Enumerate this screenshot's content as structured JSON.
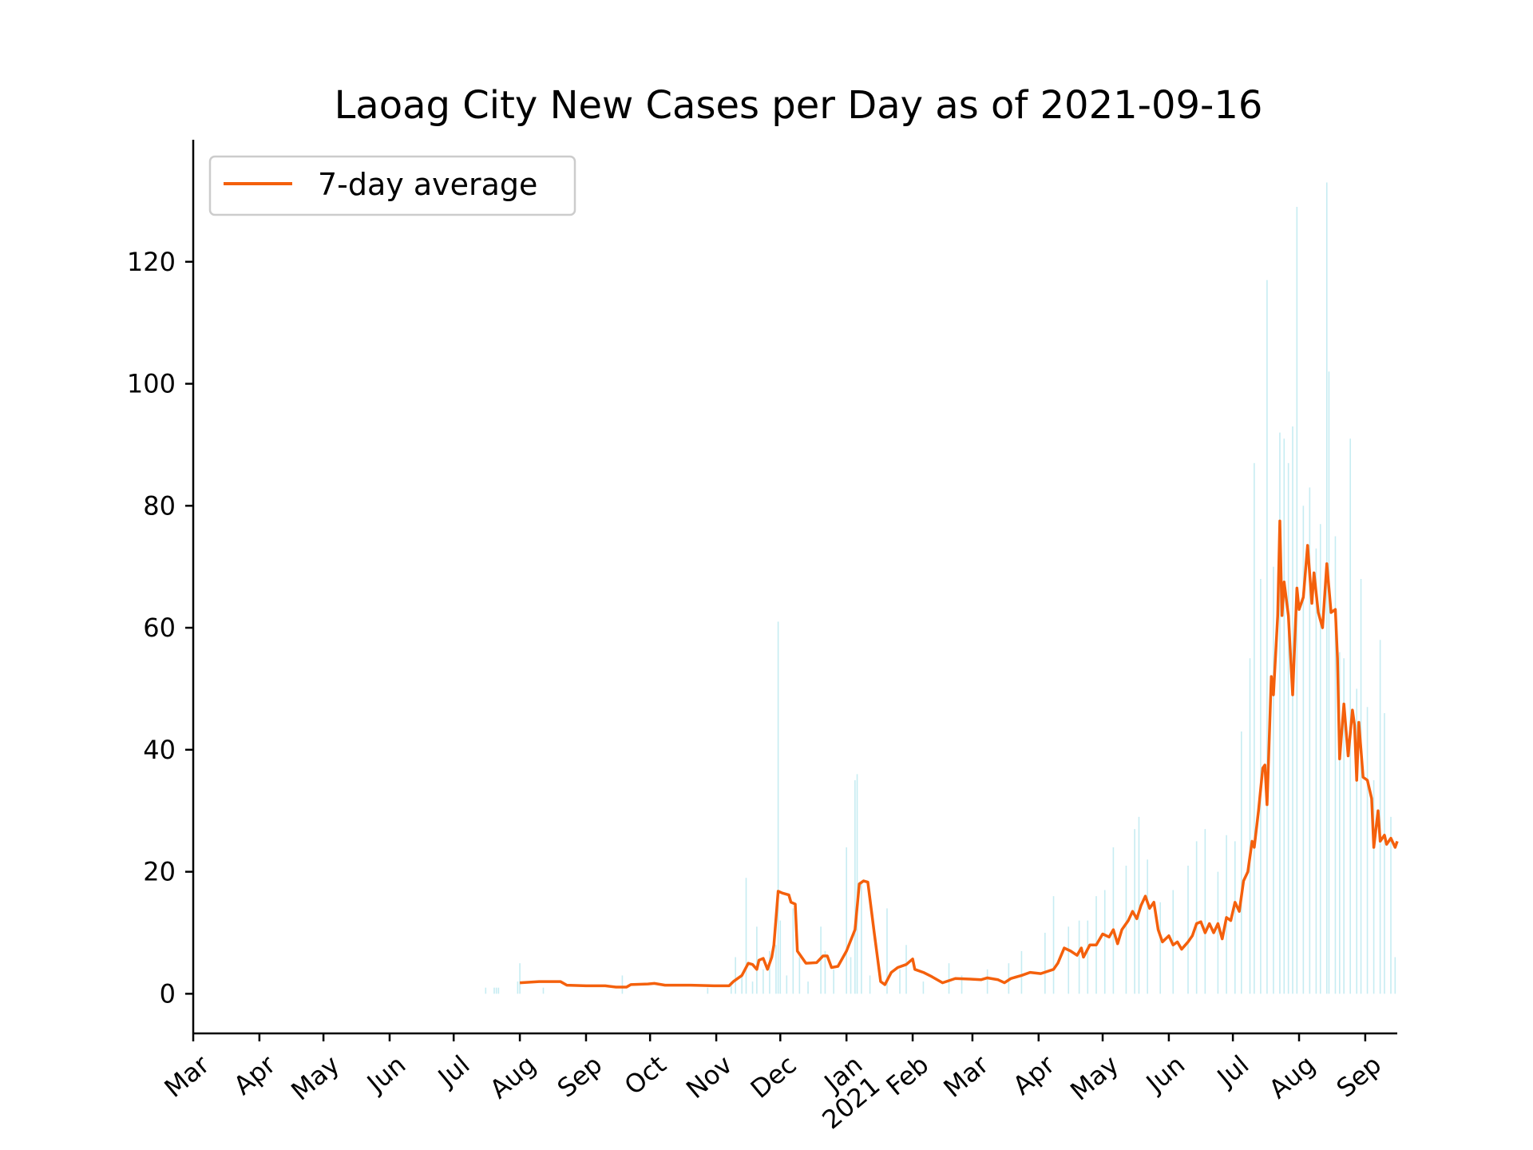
{
  "chart_data": {
    "type": "line",
    "title": "Laoag City New Cases per Day as of 2021-09-16",
    "xlabel": "",
    "ylabel": "",
    "ylim": [
      -6.5,
      140
    ],
    "xlim": [
      "2020-03-01",
      "2021-09-16"
    ],
    "y_ticks": [
      0,
      20,
      40,
      60,
      80,
      100,
      120
    ],
    "x_ticks": [
      {
        "date": "2020-03-01",
        "label": "Mar"
      },
      {
        "date": "2020-04-01",
        "label": "Apr"
      },
      {
        "date": "2020-05-01",
        "label": "May"
      },
      {
        "date": "2020-06-01",
        "label": "Jun"
      },
      {
        "date": "2020-07-01",
        "label": "Jul"
      },
      {
        "date": "2020-08-01",
        "label": "Aug"
      },
      {
        "date": "2020-09-01",
        "label": "Sep"
      },
      {
        "date": "2020-10-01",
        "label": "Oct"
      },
      {
        "date": "2020-11-01",
        "label": "Nov"
      },
      {
        "date": "2020-12-01",
        "label": "Dec"
      },
      {
        "date": "2021-01-01",
        "label": "Jan\n2021"
      },
      {
        "date": "2021-02-01",
        "label": "Feb"
      },
      {
        "date": "2021-03-01",
        "label": "Mar"
      },
      {
        "date": "2021-04-01",
        "label": "Apr"
      },
      {
        "date": "2021-05-01",
        "label": "May"
      },
      {
        "date": "2021-06-01",
        "label": "Jun"
      },
      {
        "date": "2021-07-01",
        "label": "Jul"
      },
      {
        "date": "2021-08-01",
        "label": "Aug"
      },
      {
        "date": "2021-09-01",
        "label": "Sep"
      }
    ],
    "legend": {
      "position": "top-left",
      "entries": [
        "7-day average"
      ]
    },
    "grid": false,
    "series": [
      {
        "name": "7-day average",
        "type": "line",
        "color": "#f4600c",
        "points": [
          [
            "2020-08-01",
            1.8
          ],
          [
            "2020-08-10",
            2.0
          ],
          [
            "2020-08-20",
            2.0
          ],
          [
            "2020-08-23",
            1.4
          ],
          [
            "2020-09-01",
            1.3
          ],
          [
            "2020-09-10",
            1.3
          ],
          [
            "2020-09-15",
            1.1
          ],
          [
            "2020-09-20",
            1.1
          ],
          [
            "2020-09-22",
            1.5
          ],
          [
            "2020-09-30",
            1.6
          ],
          [
            "2020-10-03",
            1.7
          ],
          [
            "2020-10-08",
            1.4
          ],
          [
            "2020-10-20",
            1.4
          ],
          [
            "2020-10-31",
            1.3
          ],
          [
            "2020-11-07",
            1.3
          ],
          [
            "2020-11-09",
            2.0
          ],
          [
            "2020-11-13",
            3.0
          ],
          [
            "2020-11-16",
            5.0
          ],
          [
            "2020-11-18",
            4.8
          ],
          [
            "2020-11-20",
            4.0
          ],
          [
            "2020-11-21",
            5.5
          ],
          [
            "2020-11-23",
            5.8
          ],
          [
            "2020-11-25",
            4.0
          ],
          [
            "2020-11-27",
            6.0
          ],
          [
            "2020-11-28",
            8.0
          ],
          [
            "2020-11-30",
            16.8
          ],
          [
            "2020-12-02",
            16.5
          ],
          [
            "2020-12-05",
            16.2
          ],
          [
            "2020-12-06",
            15.0
          ],
          [
            "2020-12-08",
            14.7
          ],
          [
            "2020-12-09",
            7.0
          ],
          [
            "2020-12-11",
            6.0
          ],
          [
            "2020-12-13",
            5.0
          ],
          [
            "2020-12-18",
            5.1
          ],
          [
            "2020-12-21",
            6.2
          ],
          [
            "2020-12-23",
            6.2
          ],
          [
            "2020-12-25",
            4.3
          ],
          [
            "2020-12-28",
            4.5
          ],
          [
            "2021-01-01",
            7.0
          ],
          [
            "2021-01-05",
            10.5
          ],
          [
            "2021-01-07",
            18.0
          ],
          [
            "2021-01-09",
            18.5
          ],
          [
            "2021-01-11",
            18.3
          ],
          [
            "2021-01-14",
            10.0
          ],
          [
            "2021-01-17",
            2.0
          ],
          [
            "2021-01-19",
            1.5
          ],
          [
            "2021-01-22",
            3.5
          ],
          [
            "2021-01-25",
            4.3
          ],
          [
            "2021-01-29",
            4.8
          ],
          [
            "2021-02-01",
            5.7
          ],
          [
            "2021-02-02",
            4.0
          ],
          [
            "2021-02-06",
            3.5
          ],
          [
            "2021-02-10",
            2.8
          ],
          [
            "2021-02-15",
            1.8
          ],
          [
            "2021-02-21",
            2.5
          ],
          [
            "2021-02-28",
            2.4
          ],
          [
            "2021-03-05",
            2.3
          ],
          [
            "2021-03-08",
            2.6
          ],
          [
            "2021-03-13",
            2.3
          ],
          [
            "2021-03-16",
            1.8
          ],
          [
            "2021-03-19",
            2.5
          ],
          [
            "2021-03-24",
            3.0
          ],
          [
            "2021-03-28",
            3.5
          ],
          [
            "2021-04-02",
            3.3
          ],
          [
            "2021-04-08",
            4.0
          ],
          [
            "2021-04-10",
            5.0
          ],
          [
            "2021-04-13",
            7.5
          ],
          [
            "2021-04-16",
            7.0
          ],
          [
            "2021-04-19",
            6.3
          ],
          [
            "2021-04-21",
            7.5
          ],
          [
            "2021-04-22",
            6.0
          ],
          [
            "2021-04-25",
            8.0
          ],
          [
            "2021-04-28",
            8.0
          ],
          [
            "2021-05-01",
            9.8
          ],
          [
            "2021-05-04",
            9.3
          ],
          [
            "2021-05-06",
            10.5
          ],
          [
            "2021-05-08",
            8.2
          ],
          [
            "2021-05-10",
            10.5
          ],
          [
            "2021-05-13",
            12.0
          ],
          [
            "2021-05-15",
            13.5
          ],
          [
            "2021-05-17",
            12.3
          ],
          [
            "2021-05-19",
            14.5
          ],
          [
            "2021-05-21",
            16.0
          ],
          [
            "2021-05-23",
            14.0
          ],
          [
            "2021-05-25",
            15.0
          ],
          [
            "2021-05-27",
            10.5
          ],
          [
            "2021-05-29",
            8.5
          ],
          [
            "2021-06-01",
            9.5
          ],
          [
            "2021-06-03",
            8.0
          ],
          [
            "2021-06-05",
            8.5
          ],
          [
            "2021-06-07",
            7.3
          ],
          [
            "2021-06-10",
            8.5
          ],
          [
            "2021-06-12",
            9.5
          ],
          [
            "2021-06-14",
            11.5
          ],
          [
            "2021-06-16",
            11.8
          ],
          [
            "2021-06-18",
            10.0
          ],
          [
            "2021-06-20",
            11.5
          ],
          [
            "2021-06-22",
            10.0
          ],
          [
            "2021-06-24",
            11.5
          ],
          [
            "2021-06-26",
            9.0
          ],
          [
            "2021-06-28",
            12.5
          ],
          [
            "2021-06-30",
            12.0
          ],
          [
            "2021-07-02",
            15.0
          ],
          [
            "2021-07-04",
            13.5
          ],
          [
            "2021-07-06",
            18.5
          ],
          [
            "2021-07-08",
            20.0
          ],
          [
            "2021-07-10",
            25.0
          ],
          [
            "2021-07-11",
            24.0
          ],
          [
            "2021-07-13",
            30.0
          ],
          [
            "2021-07-15",
            37.0
          ],
          [
            "2021-07-16",
            37.5
          ],
          [
            "2021-07-17",
            31.0
          ],
          [
            "2021-07-19",
            52.0
          ],
          [
            "2021-07-20",
            49.0
          ],
          [
            "2021-07-22",
            62.0
          ],
          [
            "2021-07-23",
            77.5
          ],
          [
            "2021-07-24",
            62.0
          ],
          [
            "2021-07-25",
            67.5
          ],
          [
            "2021-07-27",
            62.0
          ],
          [
            "2021-07-29",
            49.0
          ],
          [
            "2021-07-31",
            66.5
          ],
          [
            "2021-08-01",
            63.0
          ],
          [
            "2021-08-03",
            65.0
          ],
          [
            "2021-08-05",
            73.5
          ],
          [
            "2021-08-07",
            64.0
          ],
          [
            "2021-08-08",
            69.0
          ],
          [
            "2021-08-10",
            62.5
          ],
          [
            "2021-08-12",
            60.0
          ],
          [
            "2021-08-14",
            70.5
          ],
          [
            "2021-08-16",
            62.5
          ],
          [
            "2021-08-18",
            63.0
          ],
          [
            "2021-08-19",
            55.0
          ],
          [
            "2021-08-20",
            38.5
          ],
          [
            "2021-08-22",
            47.5
          ],
          [
            "2021-08-24",
            39.0
          ],
          [
            "2021-08-26",
            46.5
          ],
          [
            "2021-08-27",
            44.0
          ],
          [
            "2021-08-28",
            35.0
          ],
          [
            "2021-08-29",
            44.5
          ],
          [
            "2021-08-31",
            35.5
          ],
          [
            "2021-09-02",
            35.0
          ],
          [
            "2021-09-04",
            32.0
          ],
          [
            "2021-09-05",
            24.0
          ],
          [
            "2021-09-07",
            30.0
          ],
          [
            "2021-09-08",
            25.0
          ],
          [
            "2021-09-10",
            26.0
          ],
          [
            "2021-09-11",
            24.5
          ],
          [
            "2021-09-13",
            25.5
          ],
          [
            "2021-09-15",
            24.0
          ],
          [
            "2021-09-16",
            25.0
          ]
        ]
      },
      {
        "name": "",
        "type": "bar",
        "color": "#c6ecf2",
        "description_values_from": "daily new cases (faint bars)",
        "points": [
          [
            "2020-07-16",
            1
          ],
          [
            "2020-07-20",
            1
          ],
          [
            "2020-07-21",
            1
          ],
          [
            "2020-07-22",
            1
          ],
          [
            "2020-07-31",
            2
          ],
          [
            "2020-08-01",
            5
          ],
          [
            "2020-08-12",
            1
          ],
          [
            "2020-09-18",
            3
          ],
          [
            "2020-10-28",
            1
          ],
          [
            "2020-11-08",
            2
          ],
          [
            "2020-11-10",
            6
          ],
          [
            "2020-11-13",
            3
          ],
          [
            "2020-11-15",
            19
          ],
          [
            "2020-11-18",
            2
          ],
          [
            "2020-11-20",
            11
          ],
          [
            "2020-11-23",
            4
          ],
          [
            "2020-11-26",
            7
          ],
          [
            "2020-11-29",
            8
          ],
          [
            "2020-11-30",
            61
          ],
          [
            "2020-12-01",
            12
          ],
          [
            "2020-12-04",
            3
          ],
          [
            "2020-12-07",
            14
          ],
          [
            "2020-12-10",
            6
          ],
          [
            "2020-12-14",
            2
          ],
          [
            "2020-12-20",
            11
          ],
          [
            "2020-12-22",
            7
          ],
          [
            "2020-12-26",
            4
          ],
          [
            "2021-01-01",
            24
          ],
          [
            "2021-01-03",
            6
          ],
          [
            "2021-01-05",
            35
          ],
          [
            "2021-01-06",
            36
          ],
          [
            "2021-01-08",
            18
          ],
          [
            "2021-01-12",
            3
          ],
          [
            "2021-01-20",
            14
          ],
          [
            "2021-01-26",
            4
          ],
          [
            "2021-01-29",
            8
          ],
          [
            "2021-02-06",
            2
          ],
          [
            "2021-02-18",
            5
          ],
          [
            "2021-02-24",
            3
          ],
          [
            "2021-03-08",
            4
          ],
          [
            "2021-03-18",
            5
          ],
          [
            "2021-03-24",
            7
          ],
          [
            "2021-04-04",
            10
          ],
          [
            "2021-04-08",
            16
          ],
          [
            "2021-04-15",
            11
          ],
          [
            "2021-04-20",
            12
          ],
          [
            "2021-04-24",
            12
          ],
          [
            "2021-04-28",
            16
          ],
          [
            "2021-05-02",
            17
          ],
          [
            "2021-05-06",
            24
          ],
          [
            "2021-05-12",
            21
          ],
          [
            "2021-05-16",
            27
          ],
          [
            "2021-05-18",
            29
          ],
          [
            "2021-05-22",
            22
          ],
          [
            "2021-05-28",
            15
          ],
          [
            "2021-06-03",
            17
          ],
          [
            "2021-06-10",
            21
          ],
          [
            "2021-06-14",
            25
          ],
          [
            "2021-06-18",
            27
          ],
          [
            "2021-06-24",
            20
          ],
          [
            "2021-06-28",
            26
          ],
          [
            "2021-07-02",
            25
          ],
          [
            "2021-07-05",
            43
          ],
          [
            "2021-07-09",
            55
          ],
          [
            "2021-07-11",
            87
          ],
          [
            "2021-07-14",
            68
          ],
          [
            "2021-07-17",
            117
          ],
          [
            "2021-07-20",
            70
          ],
          [
            "2021-07-23",
            92
          ],
          [
            "2021-07-25",
            91
          ],
          [
            "2021-07-27",
            87
          ],
          [
            "2021-07-29",
            93
          ],
          [
            "2021-07-31",
            129
          ],
          [
            "2021-08-03",
            80
          ],
          [
            "2021-08-06",
            83
          ],
          [
            "2021-08-09",
            73
          ],
          [
            "2021-08-11",
            77
          ],
          [
            "2021-08-14",
            133
          ],
          [
            "2021-08-15",
            102
          ],
          [
            "2021-08-18",
            75
          ],
          [
            "2021-08-20",
            56
          ],
          [
            "2021-08-22",
            55
          ],
          [
            "2021-08-25",
            91
          ],
          [
            "2021-08-28",
            50
          ],
          [
            "2021-08-30",
            68
          ],
          [
            "2021-09-02",
            47
          ],
          [
            "2021-09-05",
            35
          ],
          [
            "2021-09-08",
            58
          ],
          [
            "2021-09-10",
            46
          ],
          [
            "2021-09-13",
            29
          ],
          [
            "2021-09-15",
            6
          ]
        ]
      }
    ]
  }
}
